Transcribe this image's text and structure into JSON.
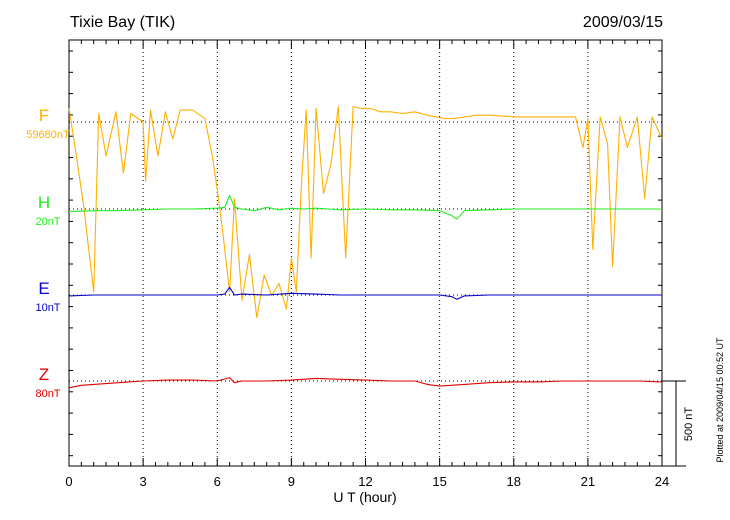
{
  "header": {
    "station": "Tixie Bay (TIK)",
    "date": "2009/03/15"
  },
  "footer": {
    "plotted_note": "Plotted at 2009/04/15 00:52 UT"
  },
  "scale_bar": {
    "label": "500 nT",
    "value": 500
  },
  "colors": {
    "F": "#ffb000",
    "H": "#22ee22",
    "E": "#0000cc",
    "Z": "#e00000",
    "axis": "#000000"
  },
  "chart_data": {
    "type": "line",
    "xlabel": "U T (hour)",
    "xlim": [
      0,
      24
    ],
    "x_ticks": [
      0,
      3,
      6,
      9,
      12,
      15,
      18,
      21,
      24
    ],
    "x_tick_labels": [
      "0",
      "3",
      "6",
      "9",
      "12",
      "15",
      "18",
      "21",
      "24"
    ],
    "ylabel": "",
    "y_scale_nT_per_bar": 500,
    "grid": true,
    "series": [
      {
        "name": "F",
        "baseline_label": "59680nT",
        "color": "#ffb000",
        "x": [
          0,
          0.3,
          0.6,
          1.0,
          1.2,
          1.5,
          1.9,
          2.2,
          2.5,
          3.0,
          3.1,
          3.3,
          3.6,
          3.9,
          4.2,
          4.5,
          5.0,
          5.5,
          5.8,
          6.0,
          6.2,
          6.5,
          6.7,
          7.0,
          7.3,
          7.6,
          7.9,
          8.2,
          8.5,
          8.8,
          9.0,
          9.2,
          9.4,
          9.6,
          9.8,
          10.0,
          10.3,
          10.6,
          10.9,
          11.2,
          11.5,
          11.8,
          12.2,
          12.6,
          13.0,
          13.5,
          14.0,
          14.5,
          15.2,
          15.6,
          16.0,
          16.5,
          17.0,
          18.0,
          19.0,
          20.0,
          20.5,
          20.8,
          21.0,
          21.2,
          21.5,
          21.8,
          22.0,
          22.3,
          22.6,
          23.0,
          23.3,
          23.6,
          24.0
        ],
        "values": [
          80,
          -200,
          -500,
          -1000,
          50,
          -200,
          60,
          -300,
          50,
          0,
          -350,
          70,
          -200,
          60,
          -100,
          70,
          70,
          20,
          -200,
          -400,
          -620,
          -1000,
          -450,
          -1050,
          -780,
          -1150,
          -900,
          -1020,
          -950,
          -1100,
          -800,
          -1000,
          -380,
          70,
          -800,
          80,
          -420,
          -250,
          90,
          -800,
          90,
          80,
          80,
          60,
          60,
          50,
          60,
          40,
          20,
          20,
          30,
          40,
          40,
          30,
          30,
          30,
          30,
          -150,
          20,
          -750,
          30,
          -130,
          -850,
          30,
          -150,
          30,
          -450,
          30,
          -100
        ]
      },
      {
        "name": "H",
        "baseline_label": "20nT",
        "color": "#22ee22",
        "x": [
          0,
          1,
          2,
          3,
          4,
          5,
          6,
          6.3,
          6.5,
          6.7,
          7.0,
          7.5,
          8.0,
          8.5,
          9.0,
          9.5,
          10.0,
          10.5,
          11.0,
          12.0,
          13.0,
          14.0,
          15.0,
          15.5,
          15.7,
          16.0,
          17.0,
          18.0,
          19.0,
          20.0,
          21.0,
          22.0,
          23.0,
          24.0
        ],
        "values": [
          -15,
          -10,
          -10,
          -5,
          0,
          0,
          5,
          10,
          80,
          10,
          0,
          -10,
          10,
          -5,
          5,
          0,
          5,
          0,
          -5,
          0,
          -5,
          -5,
          -10,
          -40,
          -60,
          -10,
          -5,
          0,
          0,
          0,
          0,
          0,
          0,
          0
        ]
      },
      {
        "name": "E",
        "baseline_label": "10nT",
        "color": "#0000cc",
        "x": [
          0,
          1,
          2,
          3,
          4,
          5,
          6,
          6.3,
          6.5,
          6.7,
          7.0,
          8.0,
          9.0,
          10.0,
          11.0,
          12.0,
          13.0,
          14.0,
          15.0,
          15.5,
          15.7,
          16.0,
          17.0,
          18.0,
          19.0,
          20.0,
          21.0,
          22.0,
          23.0,
          24.0
        ],
        "values": [
          -5,
          0,
          0,
          0,
          0,
          0,
          0,
          5,
          45,
          0,
          5,
          0,
          10,
          5,
          0,
          0,
          0,
          0,
          0,
          -10,
          -25,
          -5,
          0,
          0,
          0,
          0,
          0,
          0,
          0,
          0
        ]
      },
      {
        "name": "Z",
        "baseline_label": "80nT",
        "color": "#e00000",
        "x": [
          0,
          0.5,
          1,
          2,
          3,
          4,
          5,
          6,
          6.5,
          6.7,
          7,
          8,
          9,
          10,
          11,
          12,
          13,
          14,
          14.5,
          15.0,
          16.0,
          17.0,
          18.0,
          19.0,
          20.0,
          21.0,
          22.0,
          23.0,
          24.0
        ],
        "values": [
          -40,
          -25,
          -20,
          -10,
          0,
          5,
          5,
          0,
          20,
          -10,
          0,
          0,
          5,
          15,
          10,
          5,
          0,
          0,
          -20,
          -30,
          -20,
          -10,
          -5,
          -5,
          0,
          0,
          0,
          0,
          -5
        ]
      }
    ]
  }
}
